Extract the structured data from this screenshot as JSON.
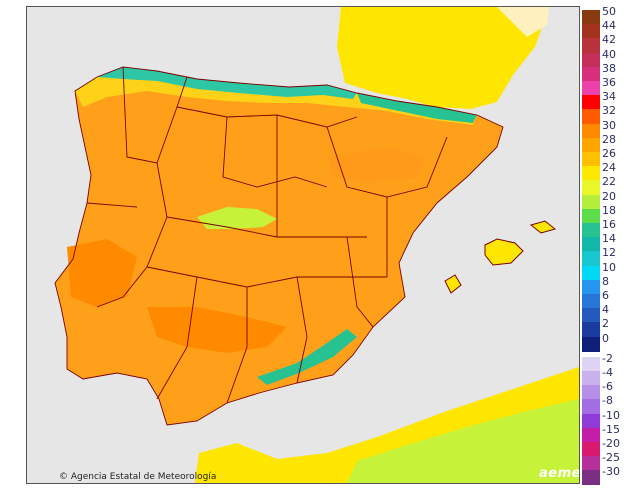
{
  "map": {
    "credit_text": "Agencia Estatal de Meteorología",
    "credit_symbol": "©",
    "brand_text": "aemet",
    "colors": {
      "sea": "#e6e6e6",
      "land_hot": "#ff9a1a",
      "land_warm": "#ffc21a",
      "land_mild": "#ffe600",
      "land_cool": "#c6f23a",
      "coast_cool": "#2ec7a6",
      "border": "#7a0000"
    }
  },
  "legend": {
    "positive": [
      {
        "label": "50",
        "color": "#8a3a10"
      },
      {
        "label": "44",
        "color": "#a3331c"
      },
      {
        "label": "42",
        "color": "#b8323a"
      },
      {
        "label": "40",
        "color": "#c42f59"
      },
      {
        "label": "38",
        "color": "#d62f7c"
      },
      {
        "label": "36",
        "color": "#ec41a9"
      },
      {
        "label": "34",
        "color": "#ff0000"
      },
      {
        "label": "32",
        "color": "#ff5a00"
      },
      {
        "label": "30",
        "color": "#ff8a00"
      },
      {
        "label": "28",
        "color": "#ffa500"
      },
      {
        "label": "26",
        "color": "#ffc000"
      },
      {
        "label": "24",
        "color": "#ffe800"
      },
      {
        "label": "22",
        "color": "#e8f62a"
      },
      {
        "label": "20",
        "color": "#b4ee3a"
      },
      {
        "label": "18",
        "color": "#5bdc48"
      },
      {
        "label": "16",
        "color": "#26c291"
      },
      {
        "label": "14",
        "color": "#12b7aa"
      },
      {
        "label": "12",
        "color": "#18c6d0"
      },
      {
        "label": "10",
        "color": "#00d8f4"
      },
      {
        "label": "8",
        "color": "#2596ef"
      },
      {
        "label": "6",
        "color": "#2875d8"
      },
      {
        "label": "4",
        "color": "#2358bd"
      },
      {
        "label": "2",
        "color": "#1a3b9e"
      },
      {
        "label": "0",
        "color": "#0e1f78"
      }
    ],
    "negative": [
      {
        "label": "-2",
        "color": "#ded3f3"
      },
      {
        "label": "-4",
        "color": "#c9b0ef"
      },
      {
        "label": "-6",
        "color": "#b58fe8"
      },
      {
        "label": "-8",
        "color": "#a36de4"
      },
      {
        "label": "-10",
        "color": "#8f3bd8"
      },
      {
        "label": "-15",
        "color": "#c21ea8"
      },
      {
        "label": "-20",
        "color": "#d81a6e"
      },
      {
        "label": "-25",
        "color": "#b5309a"
      },
      {
        "label": "-30",
        "color": "#7a2f85"
      }
    ]
  }
}
